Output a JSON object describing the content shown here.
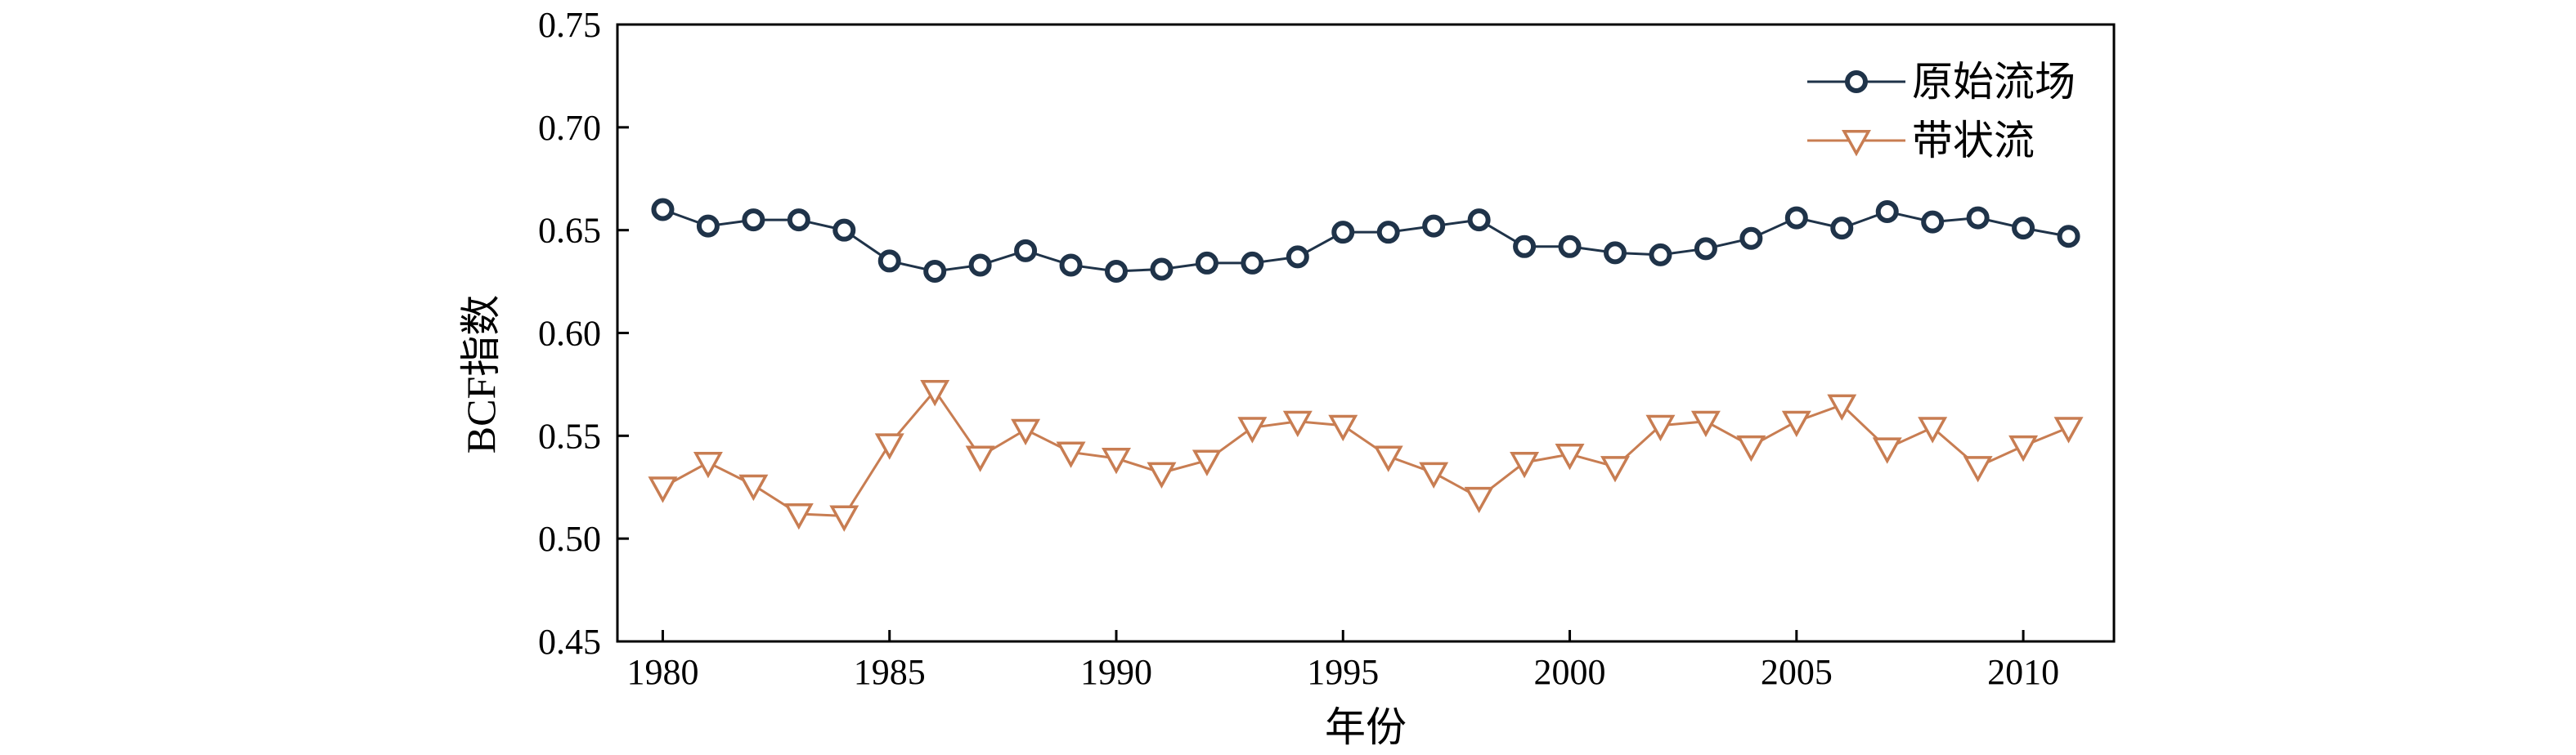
{
  "chart_data": {
    "type": "line",
    "xlabel": "年份",
    "ylabel": "BCF指数",
    "xlim": [
      1979,
      2012
    ],
    "ylim": [
      0.45,
      0.75
    ],
    "xticks": [
      1980,
      1985,
      1990,
      1995,
      2000,
      2005,
      2010
    ],
    "yticks": [
      "0.45",
      "0.50",
      "0.55",
      "0.60",
      "0.65",
      "0.70",
      "0.75"
    ],
    "grid": false,
    "legend_position": "top-right",
    "x": [
      1980,
      1981,
      1982,
      1983,
      1984,
      1985,
      1986,
      1987,
      1988,
      1989,
      1990,
      1991,
      1992,
      1993,
      1994,
      1995,
      1996,
      1997,
      1998,
      1999,
      2000,
      2001,
      2002,
      2003,
      2004,
      2005,
      2006,
      2007,
      2008,
      2009,
      2010,
      2011
    ],
    "series": [
      {
        "name": "原始流场",
        "color": "#1f3349",
        "marker": "circle",
        "values": [
          0.66,
          0.652,
          0.655,
          0.655,
          0.65,
          0.635,
          0.63,
          0.633,
          0.64,
          0.633,
          0.63,
          0.631,
          0.634,
          0.634,
          0.637,
          0.649,
          0.649,
          0.652,
          0.655,
          0.642,
          0.642,
          0.639,
          0.638,
          0.641,
          0.646,
          0.656,
          0.651,
          0.659,
          0.654,
          0.656,
          0.651,
          0.647
        ]
      },
      {
        "name": "带状流",
        "color": "#c87d52",
        "marker": "triangle-down",
        "values": [
          0.525,
          0.537,
          0.526,
          0.512,
          0.511,
          0.546,
          0.572,
          0.54,
          0.553,
          0.542,
          0.539,
          0.532,
          0.538,
          0.554,
          0.557,
          0.555,
          0.54,
          0.532,
          0.52,
          0.537,
          0.541,
          0.535,
          0.555,
          0.557,
          0.545,
          0.557,
          0.565,
          0.544,
          0.554,
          0.535,
          0.545,
          0.554
        ]
      }
    ]
  }
}
